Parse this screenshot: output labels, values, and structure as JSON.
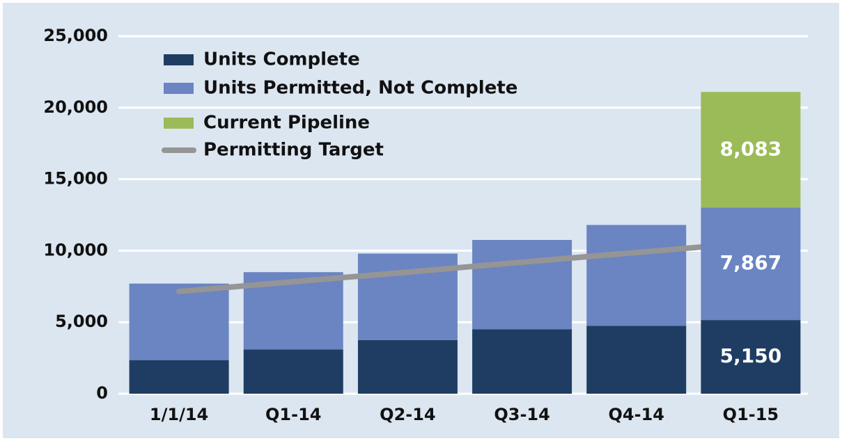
{
  "chart_data": {
    "type": "stacked_bar",
    "categories": [
      "1/1/14",
      "Q1-14",
      "Q2-14",
      "Q3-14",
      "Q4-14",
      "Q1-15"
    ],
    "series": [
      {
        "name": "Units Complete",
        "color": "#1f3d62",
        "values": [
          2350,
          3100,
          3750,
          4500,
          4750,
          5150
        ],
        "value_labels": [
          null,
          null,
          null,
          null,
          null,
          "5,150"
        ]
      },
      {
        "name": "Units Permitted, Not Complete",
        "color": "#6b84c2",
        "values": [
          5350,
          5400,
          6050,
          6250,
          7050,
          7867
        ],
        "value_labels": [
          null,
          null,
          null,
          null,
          null,
          "7,867"
        ]
      },
      {
        "name": "Current Pipeline",
        "color": "#9bbb59",
        "values": [
          null,
          null,
          null,
          null,
          null,
          8083
        ],
        "value_labels": [
          null,
          null,
          null,
          null,
          null,
          "8,083"
        ]
      },
      {
        "name": "Permitting Target",
        "color": "#959595",
        "type": "line",
        "values": [
          7150,
          7830,
          8500,
          9200,
          9870,
          10550
        ]
      }
    ],
    "ylim": [
      0,
      25000
    ],
    "yticks": [
      0,
      {
        "value": 5000,
        "label": "5,000"
      },
      {
        "value": 10000,
        "label": "10,000"
      },
      {
        "value": 15000,
        "label": "15,000"
      },
      {
        "value": 20000,
        "label": "20,000"
      },
      {
        "value": 25000,
        "label": "25,000"
      }
    ],
    "grid": true,
    "legend": "top-left"
  }
}
